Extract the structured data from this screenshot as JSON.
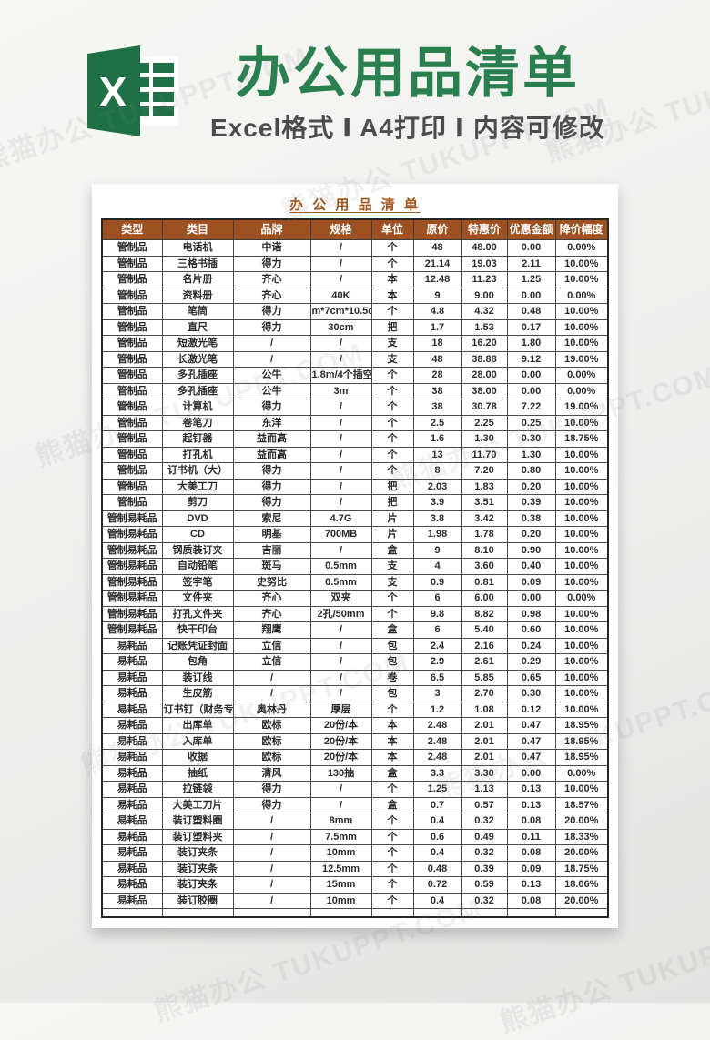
{
  "watermark": {
    "text": "熊猫办公 TUKUPPT.COM"
  },
  "header": {
    "logo": "excel-logo",
    "title": "办公用品清单",
    "subtitle": "Excel格式 Ⅰ A4打印 Ⅰ 内容可修改"
  },
  "sheet": {
    "title": "办 公 用 品 清 单",
    "columns": [
      "类型",
      "类目",
      "品牌",
      "规格",
      "单位",
      "原价",
      "特惠价",
      "优惠金额",
      "降价幅度"
    ],
    "rows": [
      [
        "管制品",
        "电话机",
        "中诺",
        "/",
        "个",
        "48",
        "48.00",
        "0.00",
        "0.00%"
      ],
      [
        "管制品",
        "三格书插",
        "得力",
        "/",
        "个",
        "21.14",
        "19.03",
        "2.11",
        "10.00%"
      ],
      [
        "管制品",
        "名片册",
        "齐心",
        "/",
        "本",
        "12.48",
        "11.23",
        "1.25",
        "10.00%"
      ],
      [
        "管制品",
        "资料册",
        "齐心",
        "40K",
        "本",
        "9",
        "9.00",
        "0.00",
        "0.00%"
      ],
      [
        "管制品",
        "笔筒",
        "得力",
        "m*7cm*10.5c",
        "个",
        "4.8",
        "4.32",
        "0.48",
        "10.00%"
      ],
      [
        "管制品",
        "直尺",
        "得力",
        "30cm",
        "把",
        "1.7",
        "1.53",
        "0.17",
        "10.00%"
      ],
      [
        "管制品",
        "短激光笔",
        "/",
        "/",
        "支",
        "18",
        "16.20",
        "1.80",
        "10.00%"
      ],
      [
        "管制品",
        "长激光笔",
        "/",
        "/",
        "支",
        "48",
        "38.88",
        "9.12",
        "19.00%"
      ],
      [
        "管制品",
        "多孔插座",
        "公牛",
        "1.8m/4个插空",
        "个",
        "28",
        "28.00",
        "0.00",
        "0.00%"
      ],
      [
        "管制品",
        "多孔插座",
        "公牛",
        "3m",
        "个",
        "38",
        "38.00",
        "0.00",
        "0.00%"
      ],
      [
        "管制品",
        "计算机",
        "得力",
        "/",
        "个",
        "38",
        "30.78",
        "7.22",
        "19.00%"
      ],
      [
        "管制品",
        "卷笔刀",
        "东洋",
        "/",
        "个",
        "2.5",
        "2.25",
        "0.25",
        "10.00%"
      ],
      [
        "管制品",
        "起钉器",
        "益而高",
        "/",
        "个",
        "1.6",
        "1.30",
        "0.30",
        "18.75%"
      ],
      [
        "管制品",
        "打孔机",
        "益而高",
        "/",
        "个",
        "13",
        "11.70",
        "1.30",
        "10.00%"
      ],
      [
        "管制品",
        "订书机（大）",
        "得力",
        "/",
        "个",
        "8",
        "7.20",
        "0.80",
        "10.00%"
      ],
      [
        "管制品",
        "大美工刀",
        "得力",
        "/",
        "把",
        "2.03",
        "1.83",
        "0.20",
        "10.00%"
      ],
      [
        "管制品",
        "剪刀",
        "得力",
        "/",
        "把",
        "3.9",
        "3.51",
        "0.39",
        "10.00%"
      ],
      [
        "管制易耗品",
        "DVD",
        "索尼",
        "4.7G",
        "片",
        "3.8",
        "3.42",
        "0.38",
        "10.00%"
      ],
      [
        "管制易耗品",
        "CD",
        "明基",
        "700MB",
        "片",
        "1.98",
        "1.78",
        "0.20",
        "10.00%"
      ],
      [
        "管制易耗品",
        "钢质装订夹",
        "吉丽",
        "/",
        "盒",
        "9",
        "8.10",
        "0.90",
        "10.00%"
      ],
      [
        "管制易耗品",
        "自动铅笔",
        "斑马",
        "0.5mm",
        "支",
        "4",
        "3.60",
        "0.40",
        "10.00%"
      ],
      [
        "管制易耗品",
        "签字笔",
        "史努比",
        "0.5mm",
        "支",
        "0.9",
        "0.81",
        "0.09",
        "10.00%"
      ],
      [
        "管制易耗品",
        "文件夹",
        "齐心",
        "双夹",
        "个",
        "6",
        "6.00",
        "0.00",
        "0.00%"
      ],
      [
        "管制易耗品",
        "打孔文件夹",
        "齐心",
        "2孔/50mm",
        "个",
        "9.8",
        "8.82",
        "0.98",
        "10.00%"
      ],
      [
        "管制易耗品",
        "快干印台",
        "翔鹰",
        "/",
        "盒",
        "6",
        "5.40",
        "0.60",
        "10.00%"
      ],
      [
        "易耗品",
        "记账凭证封面",
        "立信",
        "/",
        "包",
        "2.4",
        "2.16",
        "0.24",
        "10.00%"
      ],
      [
        "易耗品",
        "包角",
        "立信",
        "/",
        "包",
        "2.9",
        "2.61",
        "0.29",
        "10.00%"
      ],
      [
        "易耗品",
        "装订线",
        "/",
        "/",
        "卷",
        "6.5",
        "5.85",
        "0.65",
        "10.00%"
      ],
      [
        "易耗品",
        "生皮筋",
        "/",
        "/",
        "包",
        "3",
        "2.70",
        "0.30",
        "10.00%"
      ],
      [
        "易耗品",
        "订书钉（财务专用",
        "奥林丹",
        "厚层",
        "个",
        "1.2",
        "1.08",
        "0.12",
        "10.00%"
      ],
      [
        "易耗品",
        "出库单",
        "欧标",
        "20份/本",
        "本",
        "2.48",
        "2.01",
        "0.47",
        "18.95%"
      ],
      [
        "易耗品",
        "入库单",
        "欧标",
        "20份/本",
        "本",
        "2.48",
        "2.01",
        "0.47",
        "18.95%"
      ],
      [
        "易耗品",
        "收据",
        "欧标",
        "20份/本",
        "本",
        "2.48",
        "2.01",
        "0.47",
        "18.95%"
      ],
      [
        "易耗品",
        "抽纸",
        "清风",
        "130抽",
        "盒",
        "3.3",
        "3.30",
        "0.00",
        "0.00%"
      ],
      [
        "易耗品",
        "拉链袋",
        "得力",
        "/",
        "个",
        "1.25",
        "1.13",
        "0.13",
        "10.00%"
      ],
      [
        "易耗品",
        "大美工刀片",
        "得力",
        "/",
        "盒",
        "0.7",
        "0.57",
        "0.13",
        "18.57%"
      ],
      [
        "易耗品",
        "装订塑料圈",
        "/",
        "8mm",
        "个",
        "0.4",
        "0.32",
        "0.08",
        "20.00%"
      ],
      [
        "易耗品",
        "装订塑料夹",
        "/",
        "7.5mm",
        "个",
        "0.6",
        "0.49",
        "0.11",
        "18.33%"
      ],
      [
        "易耗品",
        "装订夹条",
        "/",
        "10mm",
        "个",
        "0.4",
        "0.32",
        "0.08",
        "20.00%"
      ],
      [
        "易耗品",
        "装订夹条",
        "/",
        "12.5mm",
        "个",
        "0.48",
        "0.39",
        "0.09",
        "18.75%"
      ],
      [
        "易耗品",
        "装订夹条",
        "/",
        "15mm",
        "个",
        "0.72",
        "0.59",
        "0.13",
        "18.06%"
      ],
      [
        "易耗品",
        "装订胶圈",
        "/",
        "10mm",
        "个",
        "0.4",
        "0.32",
        "0.08",
        "20.00%"
      ]
    ]
  },
  "colors": {
    "logo_green": "#1e7145",
    "title_green": "#2a7f4e",
    "subtitle_gray": "#4b4b4b",
    "table_title_brown": "#a0551a",
    "header_bg_brown": "#9e5120",
    "header_text": "#ffffff"
  }
}
